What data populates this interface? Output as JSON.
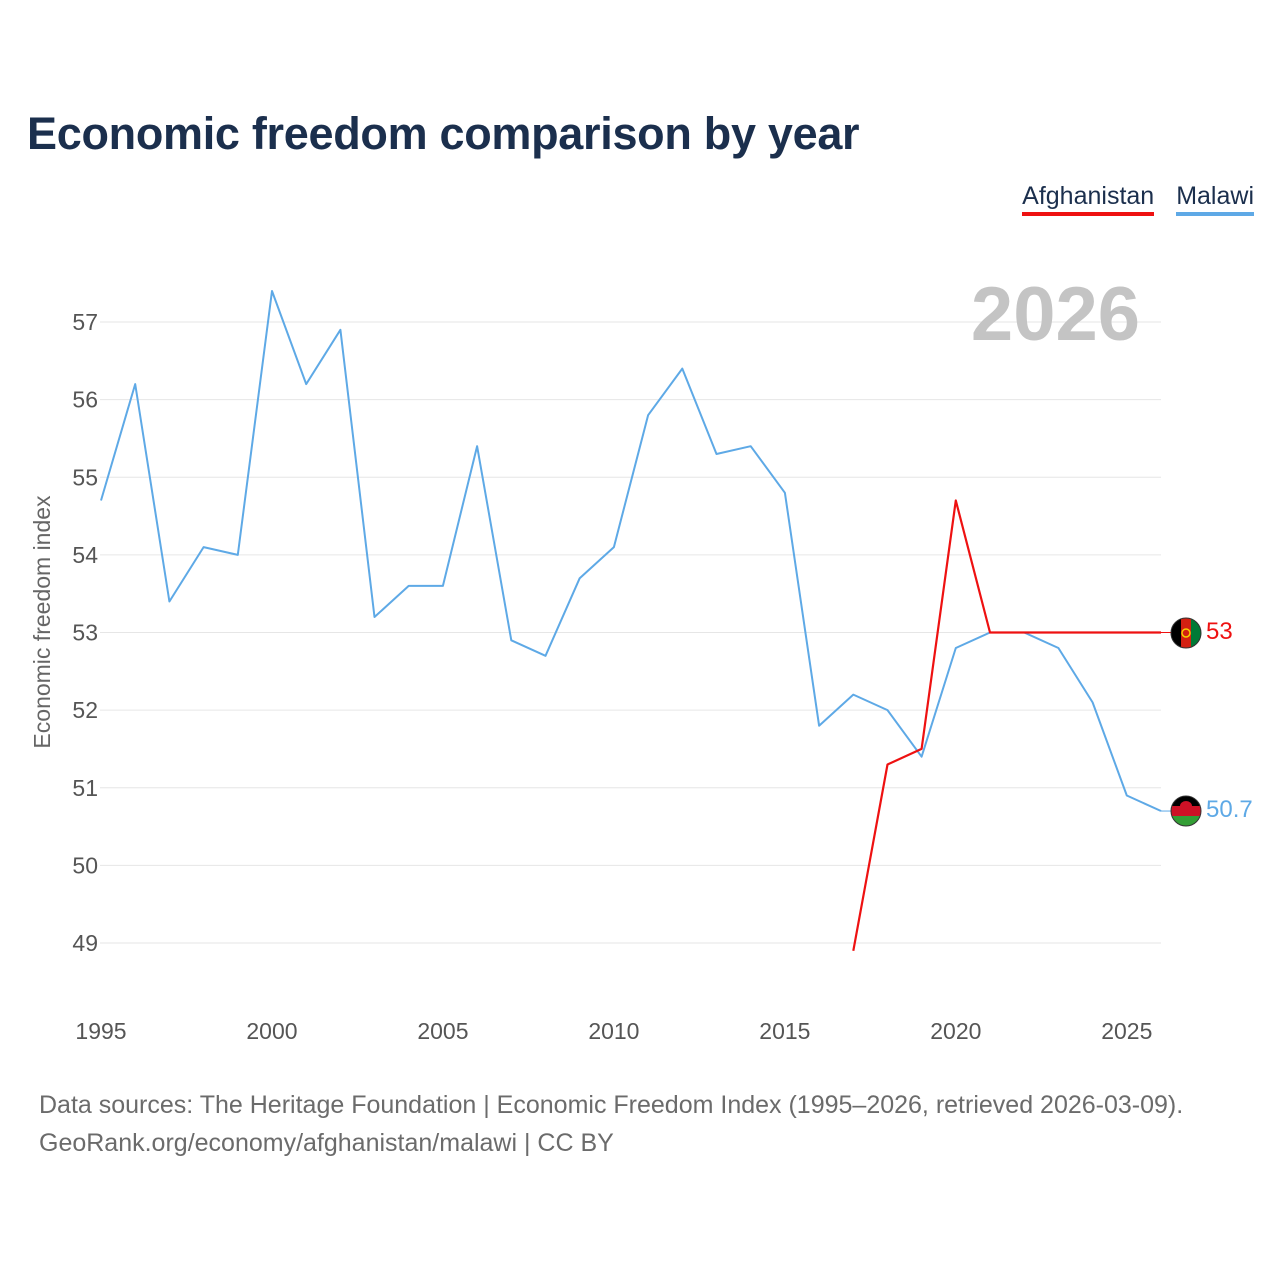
{
  "title": "Economic freedom comparison by year",
  "legend": [
    {
      "label": "Afghanistan",
      "color": "#ee1111"
    },
    {
      "label": "Malawi",
      "color": "#5ea9e6"
    }
  ],
  "year_watermark": "2026",
  "source_line1": "Data sources: The Heritage Foundation | Economic Freedom Index (1995–2026, retrieved 2026-03-09).",
  "source_line2": "GeoRank.org/economy/afghanistan/malawi | CC BY",
  "chart_data": {
    "type": "line",
    "title": "Economic freedom comparison by year",
    "xlabel": "",
    "ylabel": "Economic freedom index",
    "xlim": [
      1995,
      2026
    ],
    "ylim": [
      49,
      57
    ],
    "x_ticks": [
      1995,
      2000,
      2005,
      2010,
      2015,
      2020,
      2025
    ],
    "y_ticks": [
      49,
      50,
      51,
      52,
      53,
      54,
      55,
      56,
      57
    ],
    "grid": true,
    "series": [
      {
        "name": "Malawi",
        "color": "#5ea9e6",
        "x": [
          1995,
          1996,
          1997,
          1998,
          1999,
          2000,
          2001,
          2002,
          2003,
          2004,
          2005,
          2006,
          2007,
          2008,
          2009,
          2010,
          2011,
          2012,
          2013,
          2014,
          2015,
          2016,
          2017,
          2018,
          2019,
          2020,
          2021,
          2022,
          2023,
          2024,
          2025,
          2026
        ],
        "values": [
          54.7,
          56.2,
          53.4,
          54.1,
          54.0,
          57.4,
          56.2,
          56.9,
          53.2,
          53.6,
          53.6,
          55.4,
          52.9,
          52.7,
          53.7,
          54.1,
          55.8,
          56.4,
          55.3,
          55.4,
          54.8,
          51.8,
          52.2,
          52.0,
          51.4,
          52.8,
          53.0,
          53.0,
          52.8,
          52.1,
          50.9,
          50.7
        ],
        "end_label": "50.7"
      },
      {
        "name": "Afghanistan",
        "color": "#ee1111",
        "x": [
          2017,
          2018,
          2019,
          2020,
          2021,
          2022,
          2023,
          2024,
          2025,
          2026
        ],
        "values": [
          48.9,
          51.3,
          51.5,
          54.7,
          53.0,
          53.0,
          53.0,
          53.0,
          53.0,
          53.0
        ],
        "end_label": "53"
      }
    ]
  }
}
